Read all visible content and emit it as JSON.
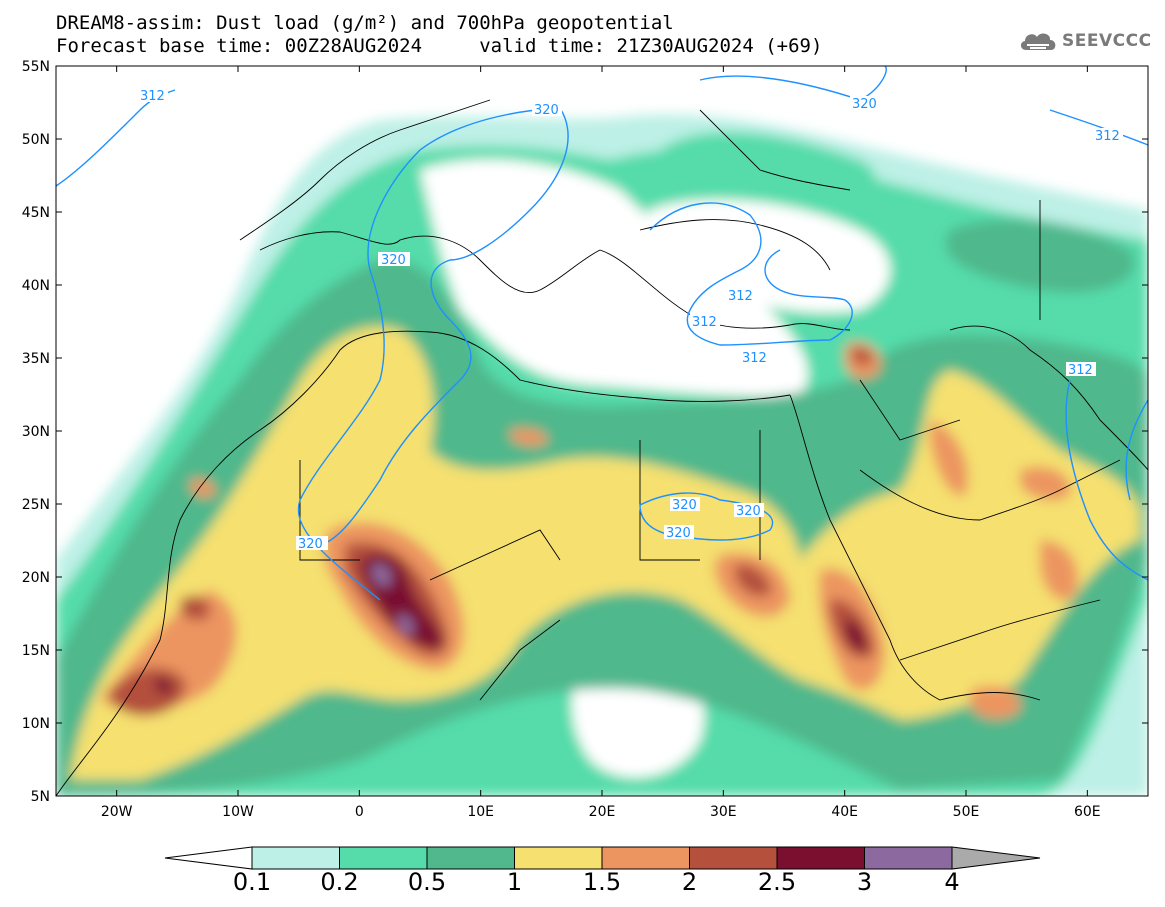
{
  "header": {
    "title_line1": "DREAM8-assim: Dust load (g/m²) and 700hPa geopotential",
    "title_line2": "Forecast base time: 00Z28AUG2024     valid time: 21Z30AUG2024 (+69)"
  },
  "logo": {
    "icon": "cloud-logo-icon",
    "text": "SEEVCCC"
  },
  "map": {
    "lon_range": [
      -25,
      65
    ],
    "lat_range": [
      5,
      55
    ],
    "lat_ticks": [
      "55N",
      "50N",
      "45N",
      "40N",
      "35N",
      "30N",
      "25N",
      "20N",
      "15N",
      "10N",
      "5N"
    ],
    "lon_ticks": [
      "20W",
      "10W",
      "0",
      "10E",
      "20E",
      "30E",
      "40E",
      "50E",
      "60E"
    ],
    "contour_labels": [
      "312",
      "320",
      "320",
      "312",
      "320",
      "312",
      "312",
      "312",
      "320",
      "320",
      "320",
      "320",
      "312"
    ],
    "contour_color": "#1e90ff"
  },
  "colorbar": {
    "labels": [
      "0.1",
      "0.2",
      "0.5",
      "1",
      "1.5",
      "2",
      "2.5",
      "3",
      "4"
    ],
    "colors": [
      "#bdf0e6",
      "#55dcaa",
      "#50b88c",
      "#f5e070",
      "#ec9560",
      "#b4503c",
      "#7a0f30",
      "#8c6aa0"
    ],
    "under_color": "#ffffff",
    "over_color": "#aaaaaa"
  }
}
